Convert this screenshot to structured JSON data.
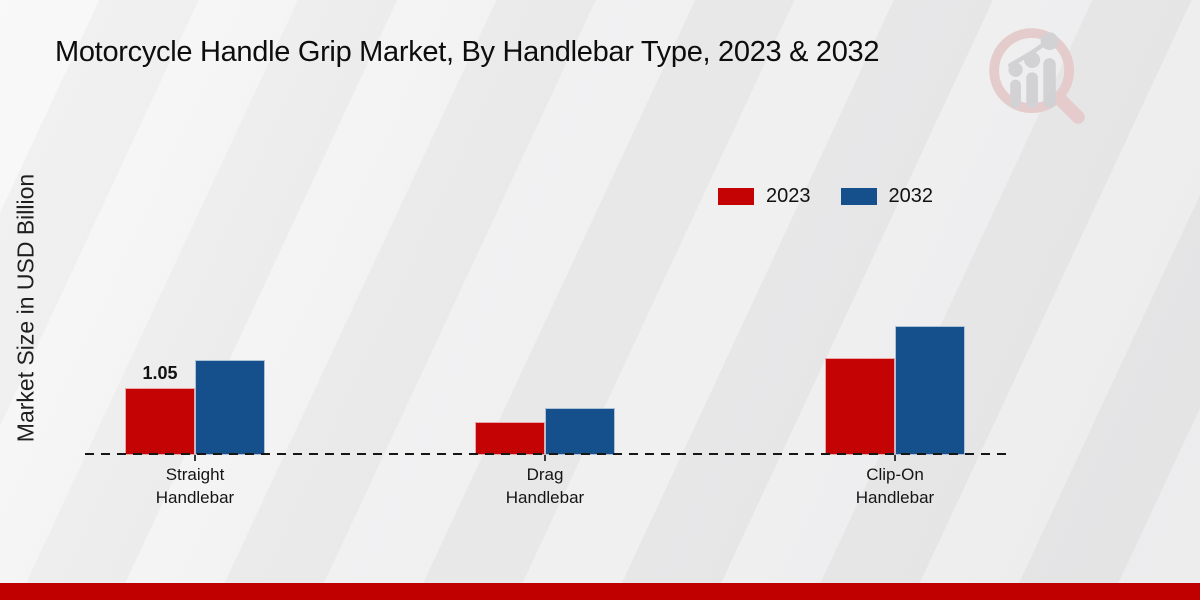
{
  "title": "Motorcycle Handle Grip Market, By Handlebar Type, 2023 & 2032",
  "y_axis_label": "Market Size in USD Billion",
  "colors": {
    "series_2023_red": "#c40404",
    "series_2032_blue": "#15508c",
    "footer_bar_red": "#c00000",
    "watermark_pink": "#e5c9c9",
    "watermark_gray": "#cfcfd3"
  },
  "legend": [
    {
      "label": "2023",
      "color": "#c40404"
    },
    {
      "label": "2032",
      "color": "#15508c"
    }
  ],
  "watermark_icon": "magnifier-bar-chart-logo",
  "chart_data": {
    "type": "bar",
    "title": "Motorcycle Handle Grip Market, By Handlebar Type, 2023 & 2032",
    "categories": [
      "Straight Handlebar",
      "Drag Handlebar",
      "Clip-On Handlebar"
    ],
    "series": [
      {
        "name": "2023",
        "color": "#c40404",
        "values": [
          1.05,
          0.52,
          1.52
        ]
      },
      {
        "name": "2032",
        "color": "#15508c",
        "values": [
          1.48,
          0.74,
          2.02
        ]
      }
    ],
    "data_labels": [
      {
        "series": "2023",
        "category": "Straight Handlebar",
        "text": "1.05"
      }
    ],
    "xlabel": "",
    "ylabel": "Market Size in USD Billion",
    "ylim": [
      0,
      2.3
    ],
    "y_axis_ticks_visible": false,
    "grid": false,
    "legend_position": "top-right",
    "baseline_style": "dashed"
  }
}
